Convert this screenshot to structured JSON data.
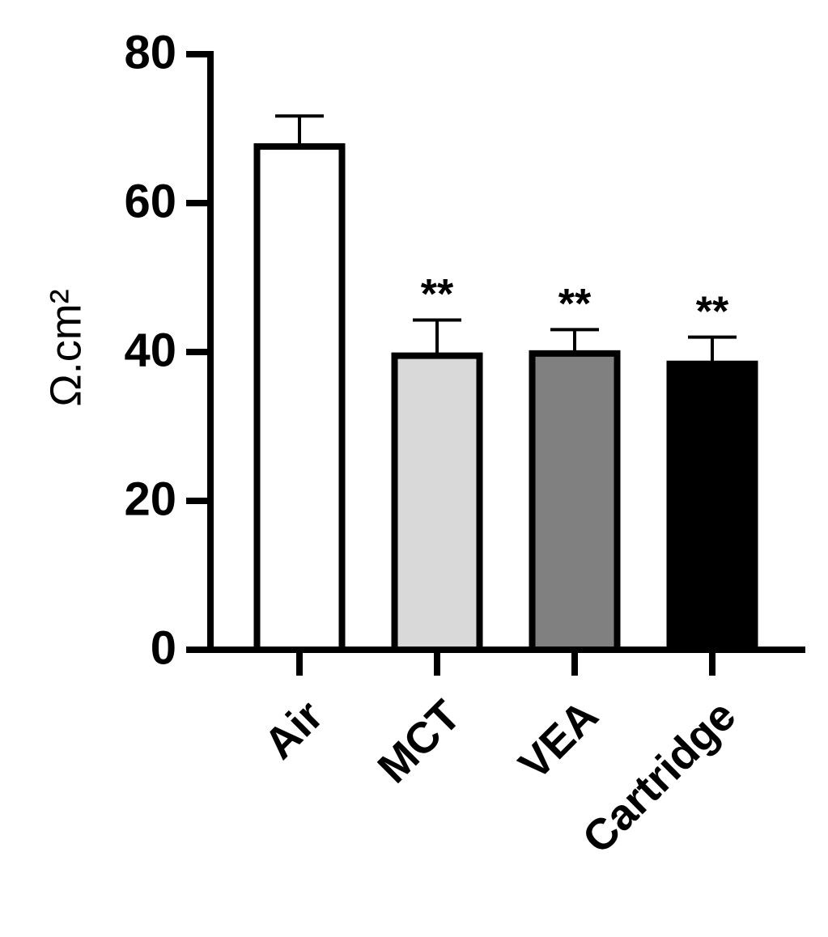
{
  "chart_data": {
    "type": "bar",
    "ylabel": "Ω.cm²",
    "categories": [
      "Air",
      "MCT",
      "VEA",
      "Cartridge"
    ],
    "values": [
      67.6,
      39.5,
      39.8,
      38.4
    ],
    "errors": [
      4.1,
      4.8,
      3.2,
      3.6
    ],
    "colors": [
      "#ffffff",
      "#d9d9d9",
      "#808080",
      "#000000"
    ],
    "annotations": [
      null,
      "**",
      "**",
      "**"
    ],
    "ylim": [
      0,
      80
    ],
    "yticks": [
      0,
      20,
      40,
      60,
      80
    ],
    "grid": false
  }
}
